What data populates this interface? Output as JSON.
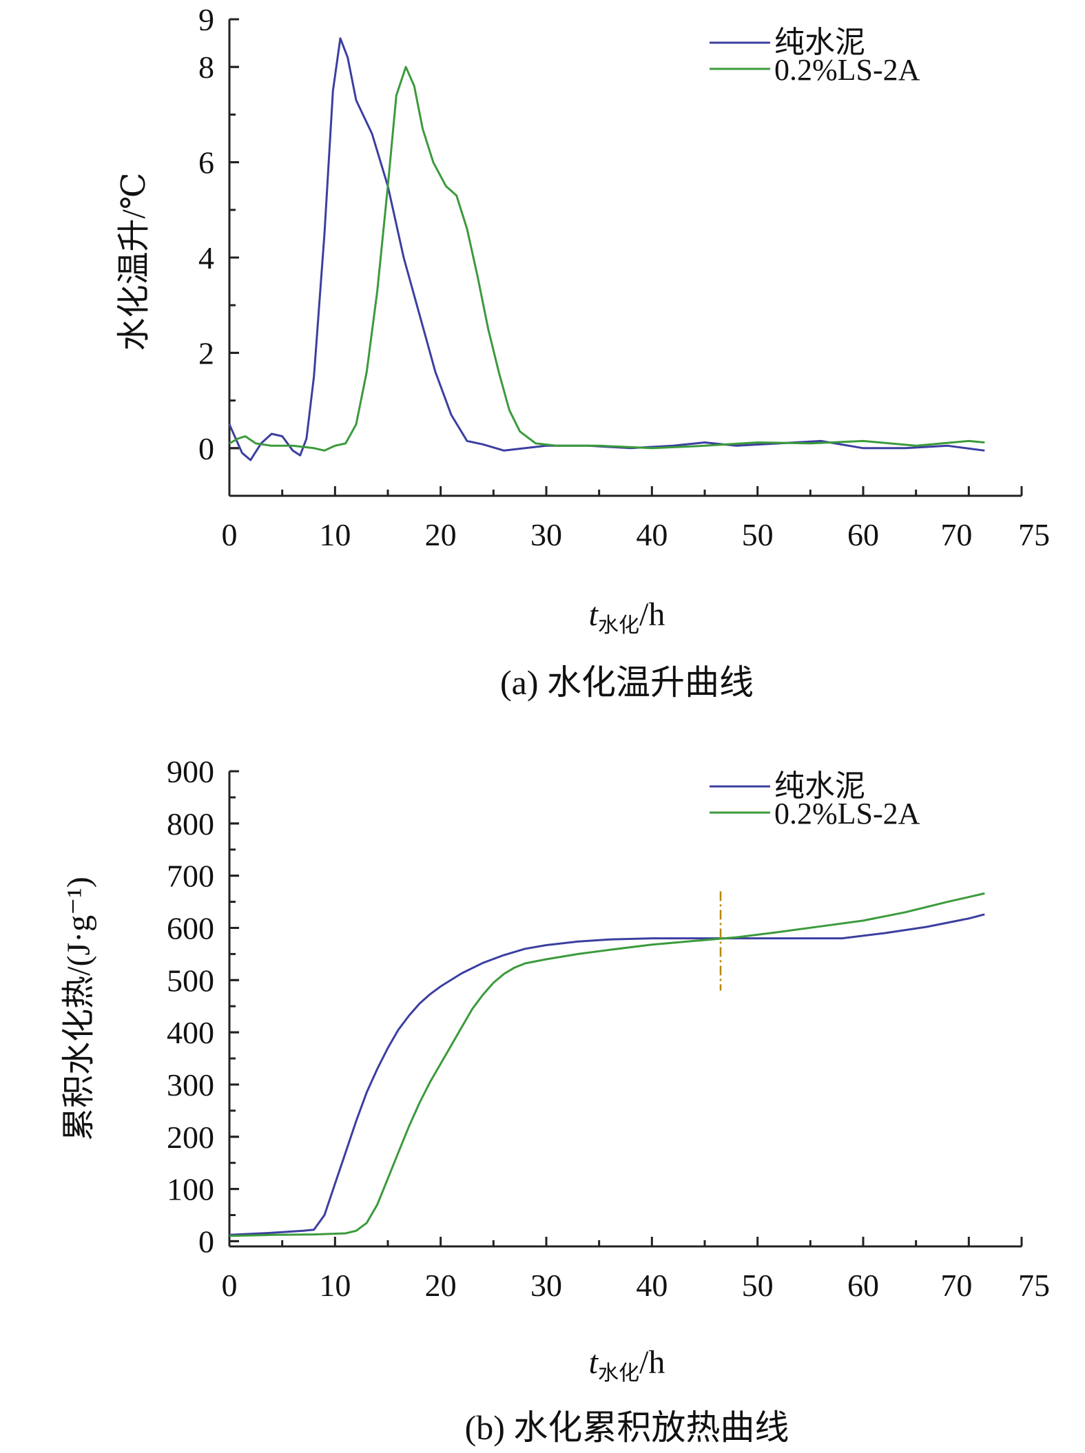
{
  "chart_data": [
    {
      "type": "line",
      "caption": "(a) 水化温升曲线",
      "xlabel": "t",
      "xlabel_sub": "水化",
      "xlabel_unit": "/h",
      "ylabel": "水化温升/℃",
      "xlim": [
        0,
        75
      ],
      "ylim": [
        -1,
        9
      ],
      "xticks": [
        0,
        10,
        20,
        30,
        40,
        50,
        60,
        70,
        75
      ],
      "yticks": [
        0,
        2,
        4,
        6,
        8,
        9
      ],
      "legend_position": "top-right",
      "series": [
        {
          "name": "纯水泥",
          "color": "#3b3fa0",
          "points": [
            [
              0,
              0.5
            ],
            [
              0.6,
              0.2
            ],
            [
              1.2,
              -0.1
            ],
            [
              2,
              -0.25
            ],
            [
              3,
              0.1
            ],
            [
              4,
              0.3
            ],
            [
              5,
              0.25
            ],
            [
              6,
              -0.05
            ],
            [
              6.7,
              -0.15
            ],
            [
              7.3,
              0.2
            ],
            [
              8,
              1.5
            ],
            [
              9,
              4.5
            ],
            [
              9.8,
              7.5
            ],
            [
              10.5,
              8.6
            ],
            [
              11.2,
              8.2
            ],
            [
              12,
              7.3
            ],
            [
              13.5,
              6.6
            ],
            [
              15,
              5.5
            ],
            [
              16.5,
              4.0
            ],
            [
              18,
              2.8
            ],
            [
              19.5,
              1.6
            ],
            [
              21,
              0.7
            ],
            [
              22.5,
              0.15
            ],
            [
              24,
              0.08
            ],
            [
              26,
              -0.05
            ],
            [
              28,
              0.0
            ],
            [
              30,
              0.05
            ],
            [
              34,
              0.05
            ],
            [
              38,
              0.0
            ],
            [
              42,
              0.05
            ],
            [
              45,
              0.12
            ],
            [
              48,
              0.05
            ],
            [
              52,
              0.1
            ],
            [
              56,
              0.15
            ],
            [
              60,
              0.0
            ],
            [
              64,
              0.0
            ],
            [
              68,
              0.05
            ],
            [
              71.5,
              -0.05
            ]
          ]
        },
        {
          "name": "0.2%LS-2A",
          "color": "#3b9a3b",
          "points": [
            [
              0,
              0.1
            ],
            [
              0.8,
              0.2
            ],
            [
              1.5,
              0.25
            ],
            [
              2.5,
              0.1
            ],
            [
              4,
              0.05
            ],
            [
              6,
              0.05
            ],
            [
              8,
              0.0
            ],
            [
              9,
              -0.05
            ],
            [
              10,
              0.05
            ],
            [
              11,
              0.1
            ],
            [
              12,
              0.5
            ],
            [
              13,
              1.6
            ],
            [
              14,
              3.3
            ],
            [
              15,
              5.5
            ],
            [
              15.8,
              7.4
            ],
            [
              16.7,
              8.0
            ],
            [
              17.5,
              7.6
            ],
            [
              18.3,
              6.7
            ],
            [
              19.3,
              6.0
            ],
            [
              20.5,
              5.5
            ],
            [
              21.5,
              5.3
            ],
            [
              22.5,
              4.6
            ],
            [
              23.5,
              3.6
            ],
            [
              24.5,
              2.5
            ],
            [
              25.5,
              1.6
            ],
            [
              26.5,
              0.8
            ],
            [
              27.5,
              0.35
            ],
            [
              29,
              0.1
            ],
            [
              31,
              0.05
            ],
            [
              35,
              0.05
            ],
            [
              40,
              0.0
            ],
            [
              45,
              0.05
            ],
            [
              50,
              0.12
            ],
            [
              55,
              0.1
            ],
            [
              60,
              0.15
            ],
            [
              65,
              0.05
            ],
            [
              70,
              0.15
            ],
            [
              71.5,
              0.12
            ]
          ]
        }
      ]
    },
    {
      "type": "line",
      "caption": "(b) 水化累积放热曲线",
      "xlabel": "t",
      "xlabel_sub": "水化",
      "xlabel_unit": "/h",
      "ylabel": "累积水化热/(J·g⁻¹)",
      "xlim": [
        0,
        75
      ],
      "ylim": [
        -10,
        900
      ],
      "xticks": [
        0,
        10,
        20,
        30,
        40,
        50,
        60,
        70,
        75
      ],
      "yticks": [
        0,
        100,
        200,
        300,
        400,
        500,
        600,
        700,
        800,
        900
      ],
      "legend_position": "top-right",
      "series": [
        {
          "name": "纯水泥",
          "color": "#3b3fa0",
          "points": [
            [
              0,
              12
            ],
            [
              4,
              16
            ],
            [
              7,
              20
            ],
            [
              8,
              22
            ],
            [
              9,
              50
            ],
            [
              10,
              110
            ],
            [
              11,
              170
            ],
            [
              12,
              230
            ],
            [
              13,
              285
            ],
            [
              14,
              330
            ],
            [
              15,
              370
            ],
            [
              16,
              405
            ],
            [
              17,
              432
            ],
            [
              18,
              455
            ],
            [
              19,
              473
            ],
            [
              20,
              488
            ],
            [
              22,
              513
            ],
            [
              24,
              533
            ],
            [
              26,
              548
            ],
            [
              28,
              560
            ],
            [
              30,
              567
            ],
            [
              33,
              574
            ],
            [
              36,
              578
            ],
            [
              40,
              580
            ],
            [
              45,
              580
            ],
            [
              50,
              580
            ],
            [
              55,
              580
            ],
            [
              58,
              580
            ],
            [
              62,
              590
            ],
            [
              66,
              602
            ],
            [
              70,
              618
            ],
            [
              71.5,
              626
            ]
          ]
        },
        {
          "name": "0.2%LS-2A",
          "color": "#3b9a3b",
          "points": [
            [
              0,
              10
            ],
            [
              4,
              12
            ],
            [
              8,
              13
            ],
            [
              11,
              15
            ],
            [
              12,
              20
            ],
            [
              13,
              35
            ],
            [
              14,
              70
            ],
            [
              15,
              120
            ],
            [
              16,
              170
            ],
            [
              17,
              220
            ],
            [
              18,
              265
            ],
            [
              19,
              305
            ],
            [
              20,
              340
            ],
            [
              21,
              375
            ],
            [
              22,
              410
            ],
            [
              23,
              445
            ],
            [
              24,
              472
            ],
            [
              25,
              495
            ],
            [
              26,
              512
            ],
            [
              27,
              524
            ],
            [
              28,
              532
            ],
            [
              30,
              540
            ],
            [
              33,
              550
            ],
            [
              36,
              558
            ],
            [
              40,
              568
            ],
            [
              44,
              575
            ],
            [
              48,
              582
            ],
            [
              52,
              592
            ],
            [
              56,
              603
            ],
            [
              60,
              614
            ],
            [
              64,
              630
            ],
            [
              68,
              650
            ],
            [
              71.5,
              666
            ]
          ]
        }
      ],
      "marker_x": 46.5
    }
  ]
}
